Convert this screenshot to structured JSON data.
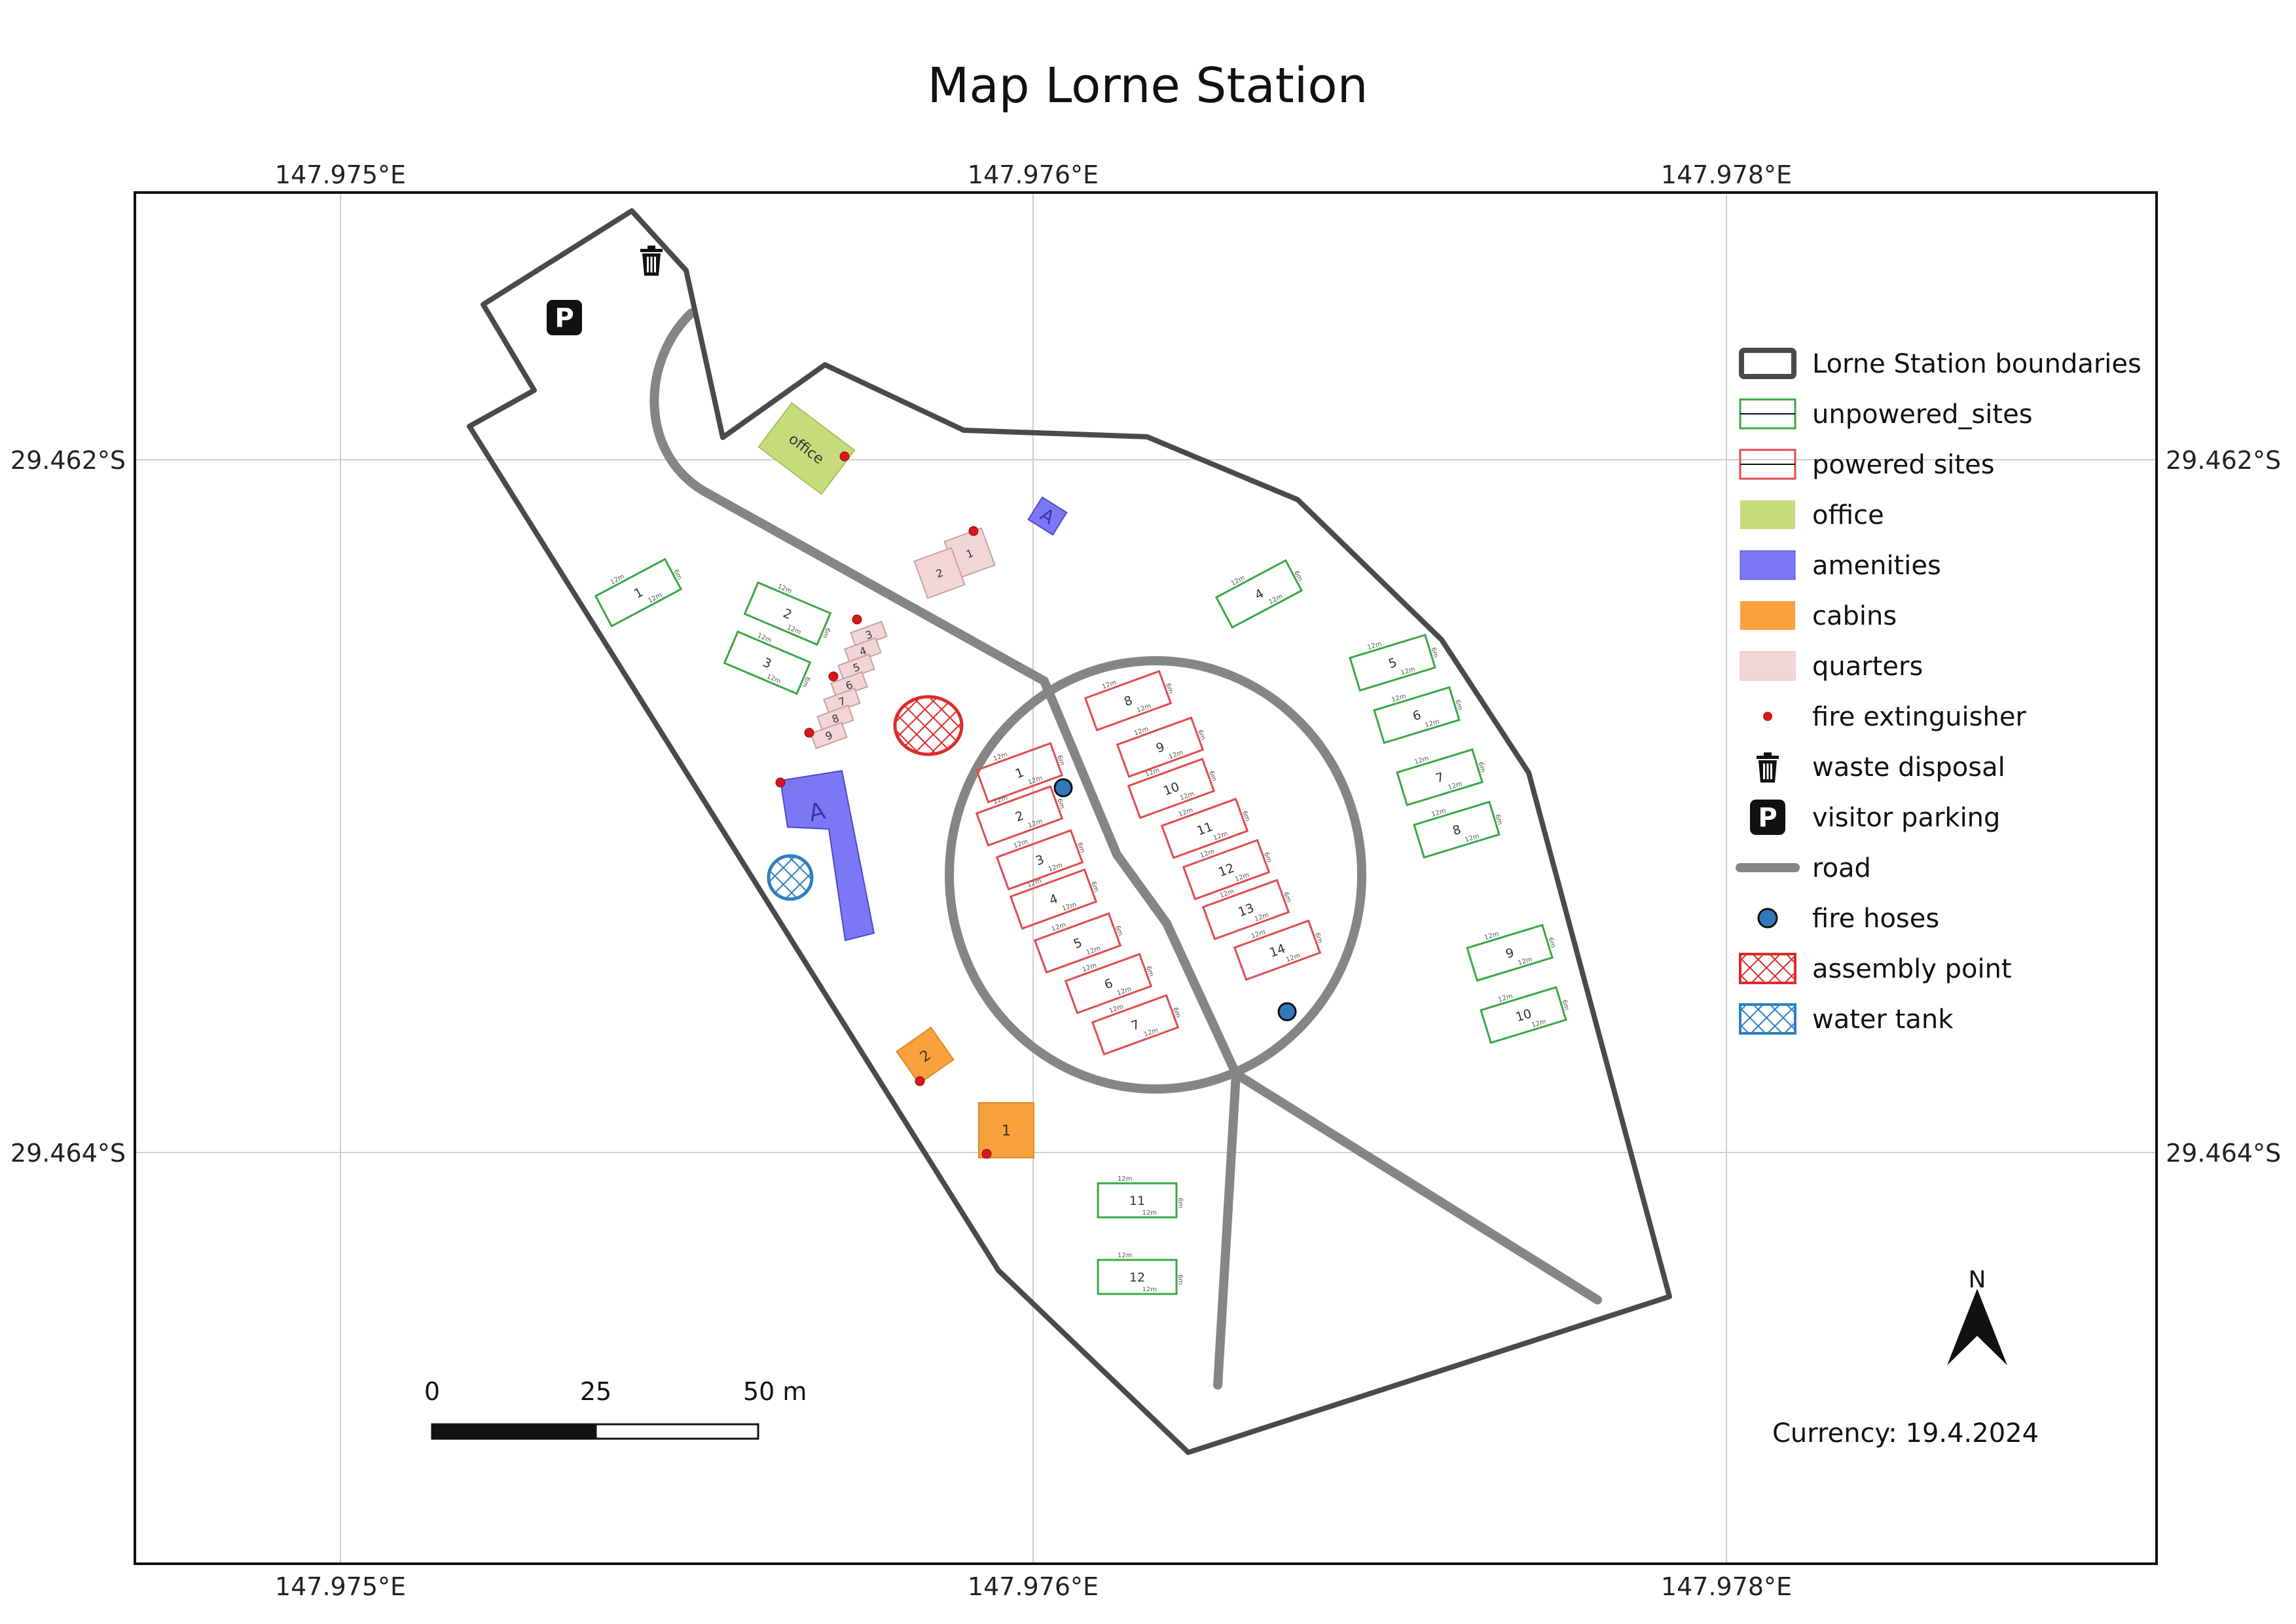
{
  "title": "Map Lorne Station",
  "grid": {
    "top_labels": [
      "147.975°E",
      "147.976°E",
      "147.978°E"
    ],
    "bottom_labels": [
      "147.975°E",
      "147.976°E",
      "147.978°E"
    ],
    "left_labels": [
      "29.462°S",
      "29.464°S"
    ],
    "right_labels": [
      "29.462°S",
      "29.464°S"
    ]
  },
  "legend": {
    "items": [
      {
        "id": "boundary",
        "label": "Lorne Station boundaries"
      },
      {
        "id": "unpowered",
        "label": "unpowered_sites"
      },
      {
        "id": "powered",
        "label": "powered sites"
      },
      {
        "id": "office",
        "label": "office"
      },
      {
        "id": "amenities",
        "label": "amenities"
      },
      {
        "id": "cabins",
        "label": "cabins"
      },
      {
        "id": "quarters",
        "label": "quarters"
      },
      {
        "id": "extinguisher",
        "label": "fire extinguisher"
      },
      {
        "id": "waste",
        "label": "waste disposal"
      },
      {
        "id": "parking",
        "label": "visitor parking"
      },
      {
        "id": "road",
        "label": "road"
      },
      {
        "id": "hoses",
        "label": "fire hoses"
      },
      {
        "id": "assembly",
        "label": "assembly point"
      },
      {
        "id": "tank",
        "label": "water tank"
      }
    ]
  },
  "colors": {
    "boundary": "#4a4a4a",
    "unpowered": "#3aa845",
    "powered": "#e24b4b",
    "office": "#c8db7c",
    "amenities": "#7b78f5",
    "cabins": "#f9a13c",
    "quarters": "#f2d6d7",
    "extinguisher": "#d9161b",
    "road": "#858585",
    "hoses": "#2f79bd",
    "assembly": "#de2b2b",
    "tank": "#2e7fc1"
  },
  "labels": {
    "office": "office",
    "dim_long": "12m",
    "dim_short": "6m"
  },
  "unpowered_sites": [
    "1",
    "2",
    "3",
    "4",
    "5",
    "6",
    "7",
    "8",
    "9",
    "10",
    "11",
    "12"
  ],
  "powered_sites": [
    "1",
    "2",
    "3",
    "4",
    "5",
    "6",
    "7",
    "8",
    "9",
    "10",
    "11",
    "12",
    "13",
    "14"
  ],
  "quarters": [
    "1",
    "2",
    "3",
    "4",
    "5",
    "6",
    "7",
    "8",
    "9"
  ],
  "cabins": [
    "1",
    "2"
  ],
  "scale_bar": {
    "labels": [
      "0",
      "25",
      "50 m"
    ]
  },
  "north_arrow": {
    "label": "N"
  },
  "currency": "Currency: 19.4.2024"
}
